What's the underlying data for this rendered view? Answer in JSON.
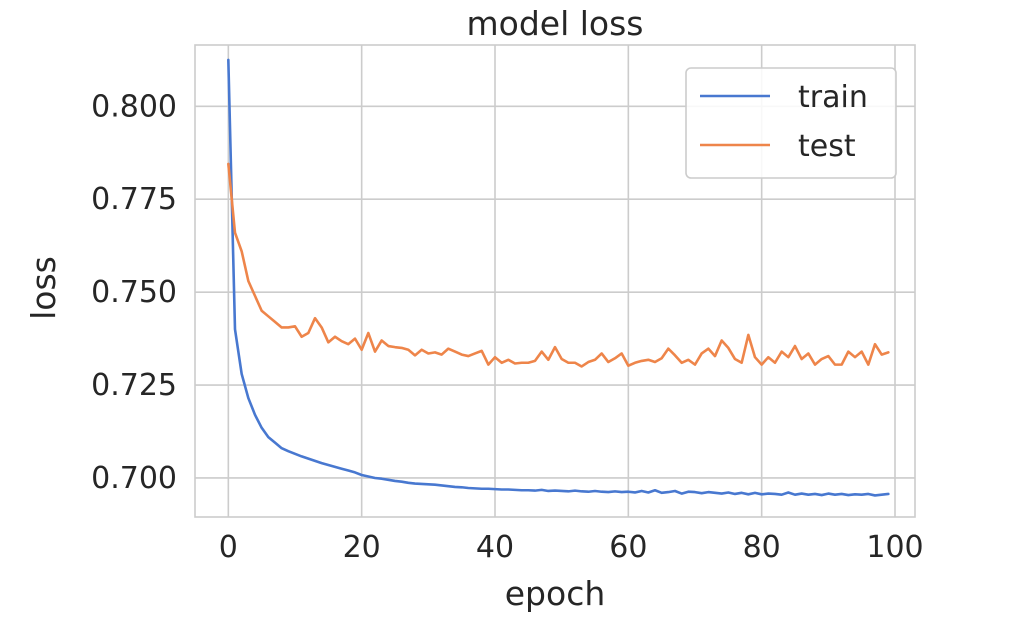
{
  "chart_data": {
    "type": "line",
    "title": "model loss",
    "xlabel": "epoch",
    "ylabel": "loss",
    "xlim": [
      -5,
      103
    ],
    "ylim": [
      0.6895,
      0.8165
    ],
    "xticks": [
      0,
      20,
      40,
      60,
      80,
      100
    ],
    "xtick_labels": [
      "0",
      "20",
      "40",
      "60",
      "80",
      "100"
    ],
    "yticks": [
      0.7,
      0.725,
      0.75,
      0.775,
      0.8
    ],
    "ytick_labels": [
      "0.700",
      "0.725",
      "0.750",
      "0.775",
      "0.800"
    ],
    "grid": true,
    "legend_position": "top-right",
    "x": [
      0,
      1,
      2,
      3,
      4,
      5,
      6,
      7,
      8,
      9,
      10,
      11,
      12,
      13,
      14,
      15,
      16,
      17,
      18,
      19,
      20,
      21,
      22,
      23,
      24,
      25,
      26,
      27,
      28,
      29,
      30,
      31,
      32,
      33,
      34,
      35,
      36,
      37,
      38,
      39,
      40,
      41,
      42,
      43,
      44,
      45,
      46,
      47,
      48,
      49,
      50,
      51,
      52,
      53,
      54,
      55,
      56,
      57,
      58,
      59,
      60,
      61,
      62,
      63,
      64,
      65,
      66,
      67,
      68,
      69,
      70,
      71,
      72,
      73,
      74,
      75,
      76,
      77,
      78,
      79,
      80,
      81,
      82,
      83,
      84,
      85,
      86,
      87,
      88,
      89,
      90,
      91,
      92,
      93,
      94,
      95,
      96,
      97,
      98,
      99
    ],
    "series": [
      {
        "name": "train",
        "color": "#4878d0",
        "values": [
          0.8125,
          0.74,
          0.728,
          0.7215,
          0.717,
          0.7135,
          0.711,
          0.7095,
          0.708,
          0.7072,
          0.7065,
          0.7058,
          0.7052,
          0.7046,
          0.704,
          0.7035,
          0.703,
          0.7025,
          0.702,
          0.7015,
          0.7008,
          0.7004,
          0.7,
          0.6998,
          0.6995,
          0.6992,
          0.699,
          0.6987,
          0.6985,
          0.6984,
          0.6983,
          0.6982,
          0.698,
          0.6978,
          0.6976,
          0.6975,
          0.6973,
          0.6972,
          0.6971,
          0.6971,
          0.697,
          0.6969,
          0.6969,
          0.6968,
          0.6967,
          0.6967,
          0.6966,
          0.6968,
          0.6965,
          0.6966,
          0.6965,
          0.6964,
          0.6966,
          0.6964,
          0.6963,
          0.6965,
          0.6963,
          0.6962,
          0.6964,
          0.6962,
          0.6963,
          0.6961,
          0.6965,
          0.6961,
          0.6967,
          0.696,
          0.6962,
          0.6965,
          0.6958,
          0.6963,
          0.6962,
          0.6959,
          0.6962,
          0.696,
          0.6958,
          0.6961,
          0.6957,
          0.696,
          0.6956,
          0.696,
          0.6956,
          0.6958,
          0.6957,
          0.6955,
          0.6961,
          0.6955,
          0.6958,
          0.6955,
          0.6957,
          0.6954,
          0.6958,
          0.6955,
          0.6957,
          0.6954,
          0.6956,
          0.6955,
          0.6957,
          0.6953,
          0.6955,
          0.6957
        ]
      },
      {
        "name": "test",
        "color": "#ee854a",
        "values": [
          0.7845,
          0.766,
          0.761,
          0.753,
          0.749,
          0.745,
          0.7435,
          0.742,
          0.7405,
          0.7405,
          0.7408,
          0.738,
          0.739,
          0.743,
          0.7405,
          0.7365,
          0.738,
          0.7368,
          0.736,
          0.7375,
          0.7345,
          0.739,
          0.734,
          0.737,
          0.7355,
          0.7352,
          0.735,
          0.7345,
          0.733,
          0.7345,
          0.7335,
          0.7338,
          0.7332,
          0.7348,
          0.734,
          0.7332,
          0.7328,
          0.7335,
          0.7342,
          0.7305,
          0.7325,
          0.731,
          0.7318,
          0.7308,
          0.731,
          0.731,
          0.7315,
          0.734,
          0.7318,
          0.7352,
          0.732,
          0.731,
          0.731,
          0.73,
          0.7312,
          0.7318,
          0.7335,
          0.7312,
          0.7322,
          0.7335,
          0.7302,
          0.731,
          0.7315,
          0.7318,
          0.7312,
          0.7322,
          0.7348,
          0.733,
          0.731,
          0.7318,
          0.7305,
          0.7335,
          0.7348,
          0.7328,
          0.737,
          0.735,
          0.732,
          0.731,
          0.7385,
          0.7325,
          0.7305,
          0.7325,
          0.731,
          0.734,
          0.7325,
          0.7355,
          0.732,
          0.7335,
          0.7305,
          0.732,
          0.7328,
          0.7305,
          0.7305,
          0.734,
          0.7325,
          0.734,
          0.7305,
          0.736,
          0.7332,
          0.7338
        ]
      }
    ]
  }
}
